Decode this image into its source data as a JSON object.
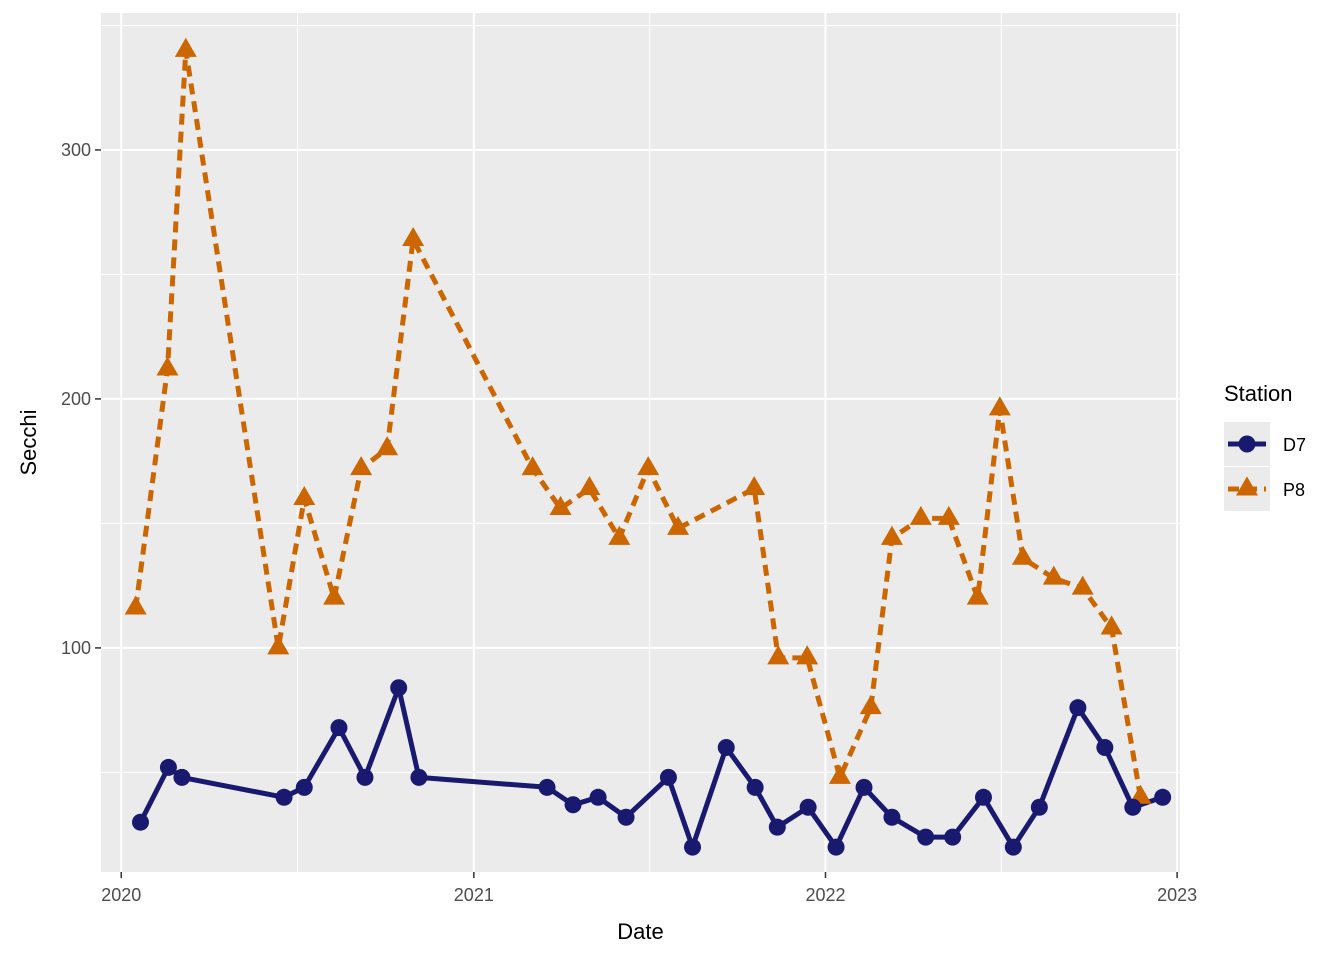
{
  "chart_data": {
    "type": "line",
    "xlabel": "Date",
    "ylabel": "Secchi",
    "x_ticks": [
      "2020",
      "2021",
      "2022",
      "2023"
    ],
    "y_ticks": [
      100,
      200,
      300
    ],
    "xlim": [
      "2019-12-11",
      "2023-01-04"
    ],
    "ylim": [
      10,
      355
    ],
    "grid": true,
    "legend": {
      "title": "Station",
      "position": "right"
    },
    "colors": {
      "D7": "#191970",
      "P8": "#CC6600",
      "panel": "#EBEBEB",
      "grid": "#FFFFFF"
    },
    "series": [
      {
        "name": "D7",
        "line": "solid",
        "marker": "circle",
        "points": [
          [
            "2020-01-21",
            30
          ],
          [
            "2020-02-19",
            52
          ],
          [
            "2020-03-04",
            48
          ],
          [
            "2020-06-18",
            40
          ],
          [
            "2020-07-09",
            44
          ],
          [
            "2020-08-14",
            68
          ],
          [
            "2020-09-10",
            48
          ],
          [
            "2020-10-15",
            84
          ],
          [
            "2020-11-05",
            48
          ],
          [
            "2021-03-18",
            44
          ],
          [
            "2021-04-14",
            37
          ],
          [
            "2021-05-10",
            40
          ],
          [
            "2021-06-08",
            32
          ],
          [
            "2021-07-22",
            48
          ],
          [
            "2021-08-16",
            20
          ],
          [
            "2021-09-20",
            60
          ],
          [
            "2021-10-20",
            44
          ],
          [
            "2021-11-12",
            28
          ],
          [
            "2021-12-14",
            36
          ],
          [
            "2022-01-12",
            20
          ],
          [
            "2022-02-10",
            44
          ],
          [
            "2022-03-11",
            32
          ],
          [
            "2022-04-15",
            24
          ],
          [
            "2022-05-13",
            24
          ],
          [
            "2022-06-14",
            40
          ],
          [
            "2022-07-15",
            20
          ],
          [
            "2022-08-11",
            36
          ],
          [
            "2022-09-20",
            76
          ],
          [
            "2022-10-18",
            60
          ],
          [
            "2022-11-16",
            36
          ],
          [
            "2022-12-17",
            40
          ]
        ]
      },
      {
        "name": "P8",
        "line": "dashed",
        "marker": "triangle",
        "points": [
          [
            "2020-01-16",
            116
          ],
          [
            "2020-02-18",
            212
          ],
          [
            "2020-03-08",
            340
          ],
          [
            "2020-06-12",
            100
          ],
          [
            "2020-07-09",
            160
          ],
          [
            "2020-08-09",
            120
          ],
          [
            "2020-09-06",
            172
          ],
          [
            "2020-10-03",
            180
          ],
          [
            "2020-10-30",
            264
          ],
          [
            "2021-03-03",
            172
          ],
          [
            "2021-04-01",
            156
          ],
          [
            "2021-05-01",
            164
          ],
          [
            "2021-06-01",
            144
          ],
          [
            "2021-07-01",
            172
          ],
          [
            "2021-08-01",
            148
          ],
          [
            "2021-10-19",
            164
          ],
          [
            "2021-11-13",
            96
          ],
          [
            "2021-12-13",
            96
          ],
          [
            "2022-01-16",
            48
          ],
          [
            "2022-02-17",
            76
          ],
          [
            "2022-03-11",
            144
          ],
          [
            "2022-04-10",
            152
          ],
          [
            "2022-05-09",
            152
          ],
          [
            "2022-06-08",
            120
          ],
          [
            "2022-07-01",
            196
          ],
          [
            "2022-07-25",
            136
          ],
          [
            "2022-08-26",
            128
          ],
          [
            "2022-09-25",
            124
          ],
          [
            "2022-10-25",
            108
          ],
          [
            "2022-11-24",
            40
          ]
        ]
      }
    ]
  }
}
